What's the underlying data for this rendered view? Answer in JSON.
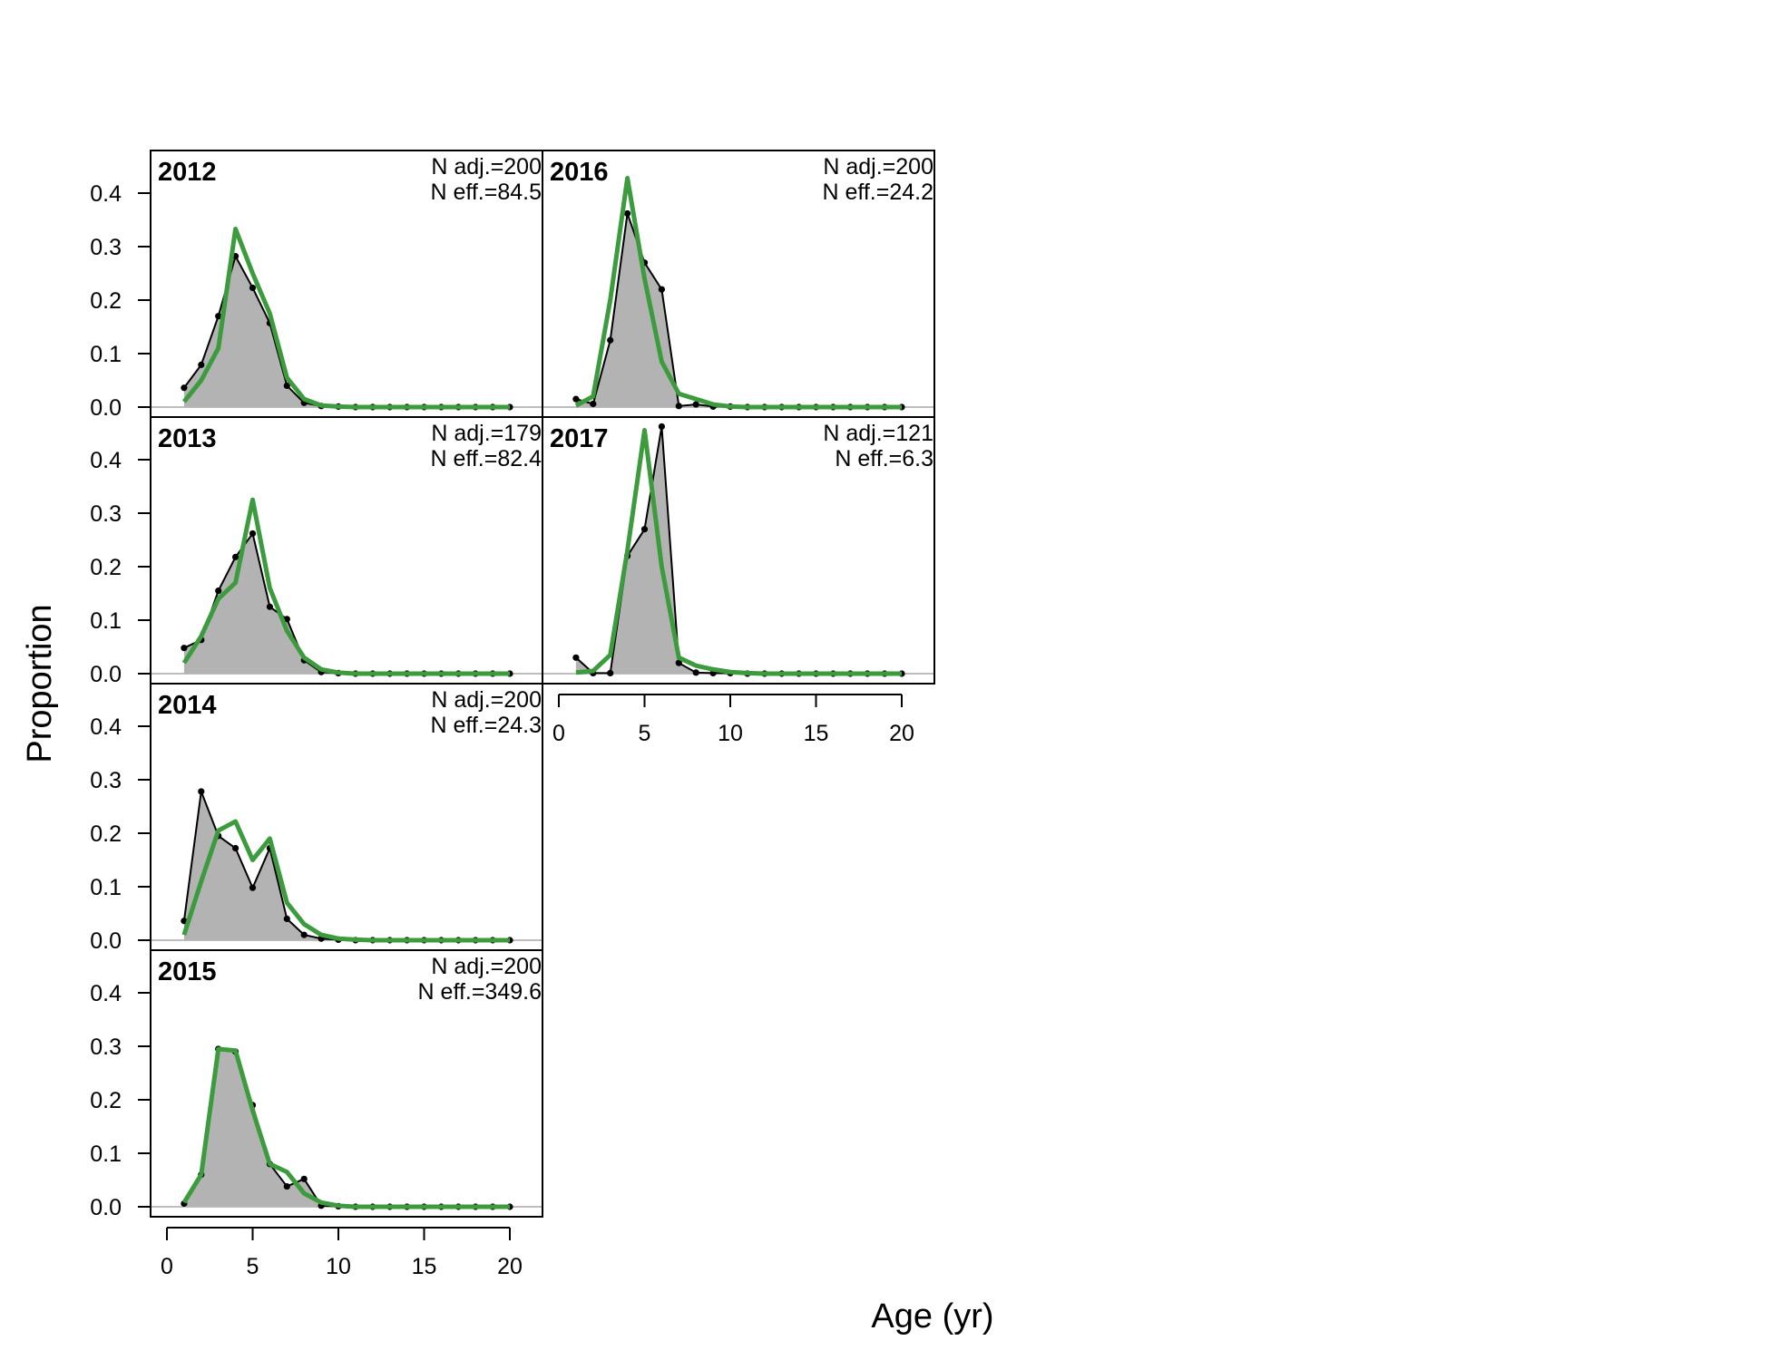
{
  "chart_data": {
    "type": "area",
    "xlabel": "Age (yr)",
    "ylabel": "Proportion",
    "xlim": [
      0,
      22
    ],
    "ylim": [
      0,
      0.47
    ],
    "x_ticks": [
      0,
      5,
      10,
      15,
      20
    ],
    "y_ticks": [
      0.0,
      0.1,
      0.2,
      0.3,
      0.4
    ],
    "y_tick_labels": [
      "0.0",
      "0.1",
      "0.2",
      "0.3",
      "0.4"
    ],
    "colors": {
      "observed_fill": "#b3b3b3",
      "observed_line": "#000000",
      "expected_line": "#3c9b3c",
      "zero_line": "#bebebe"
    },
    "ages": [
      1,
      2,
      3,
      4,
      5,
      6,
      7,
      8,
      9,
      10,
      11,
      12,
      13,
      14,
      15,
      16,
      17,
      18,
      19,
      20
    ],
    "panels": [
      {
        "year": "2012",
        "col": 0,
        "row": 0,
        "n_adj": "N adj.=200",
        "n_eff": "N eff.=84.5",
        "observed": [
          0.036,
          0.079,
          0.17,
          0.282,
          0.223,
          0.157,
          0.04,
          0.008,
          0.002,
          0.001,
          0,
          0,
          0,
          0,
          0,
          0,
          0,
          0,
          0,
          0
        ],
        "expected": [
          0.01,
          0.05,
          0.11,
          0.333,
          0.25,
          0.175,
          0.055,
          0.015,
          0.003,
          0.001,
          0,
          0,
          0,
          0,
          0,
          0,
          0,
          0,
          0,
          0
        ]
      },
      {
        "year": "2013",
        "col": 0,
        "row": 1,
        "n_adj": "N adj.=179",
        "n_eff": "N eff.=82.4",
        "observed": [
          0.048,
          0.063,
          0.155,
          0.218,
          0.262,
          0.125,
          0.102,
          0.025,
          0.003,
          0.001,
          0,
          0,
          0,
          0,
          0,
          0,
          0,
          0,
          0,
          0
        ],
        "expected": [
          0.02,
          0.07,
          0.14,
          0.17,
          0.325,
          0.16,
          0.08,
          0.03,
          0.008,
          0.002,
          0,
          0,
          0,
          0,
          0,
          0,
          0,
          0,
          0,
          0
        ]
      },
      {
        "year": "2014",
        "col": 0,
        "row": 2,
        "n_adj": "N adj.=200",
        "n_eff": "N eff.=24.3",
        "observed": [
          0.036,
          0.278,
          0.195,
          0.172,
          0.098,
          0.172,
          0.04,
          0.01,
          0.003,
          0.001,
          0,
          0,
          0,
          0,
          0,
          0,
          0,
          0,
          0,
          0
        ],
        "expected": [
          0.01,
          0.11,
          0.205,
          0.222,
          0.15,
          0.19,
          0.07,
          0.03,
          0.01,
          0.003,
          0.001,
          0,
          0,
          0,
          0,
          0,
          0,
          0,
          0,
          0
        ]
      },
      {
        "year": "2015",
        "col": 0,
        "row": 3,
        "n_adj": "N adj.=200",
        "n_eff": "N eff.=349.6",
        "observed": [
          0.006,
          0.06,
          0.295,
          0.29,
          0.19,
          0.08,
          0.038,
          0.052,
          0.002,
          0.001,
          0,
          0,
          0,
          0,
          0,
          0,
          0,
          0,
          0,
          0
        ],
        "expected": [
          0.008,
          0.06,
          0.295,
          0.292,
          0.18,
          0.08,
          0.065,
          0.025,
          0.008,
          0.002,
          0,
          0,
          0,
          0,
          0,
          0,
          0,
          0,
          0,
          0
        ]
      },
      {
        "year": "2016",
        "col": 1,
        "row": 0,
        "n_adj": "N adj.=200",
        "n_eff": "N eff.=24.2",
        "observed": [
          0.015,
          0.006,
          0.125,
          0.362,
          0.27,
          0.22,
          0.002,
          0.005,
          0.001,
          0.001,
          0,
          0,
          0,
          0,
          0,
          0,
          0,
          0,
          0,
          0
        ],
        "expected": [
          0.003,
          0.02,
          0.2,
          0.428,
          0.24,
          0.085,
          0.025,
          0.015,
          0.005,
          0.001,
          0,
          0,
          0,
          0,
          0,
          0,
          0,
          0,
          0,
          0
        ]
      },
      {
        "year": "2017",
        "col": 1,
        "row": 1,
        "n_adj": "N adj.=121",
        "n_eff": "N eff.=6.3",
        "observed": [
          0.03,
          0.001,
          0.001,
          0.22,
          0.27,
          0.462,
          0.02,
          0.002,
          0.001,
          0.001,
          0,
          0,
          0,
          0,
          0,
          0,
          0,
          0,
          0,
          0
        ],
        "expected": [
          0.002,
          0.005,
          0.035,
          0.23,
          0.455,
          0.2,
          0.03,
          0.015,
          0.008,
          0.003,
          0.001,
          0,
          0,
          0,
          0,
          0,
          0,
          0,
          0,
          0
        ]
      }
    ]
  }
}
